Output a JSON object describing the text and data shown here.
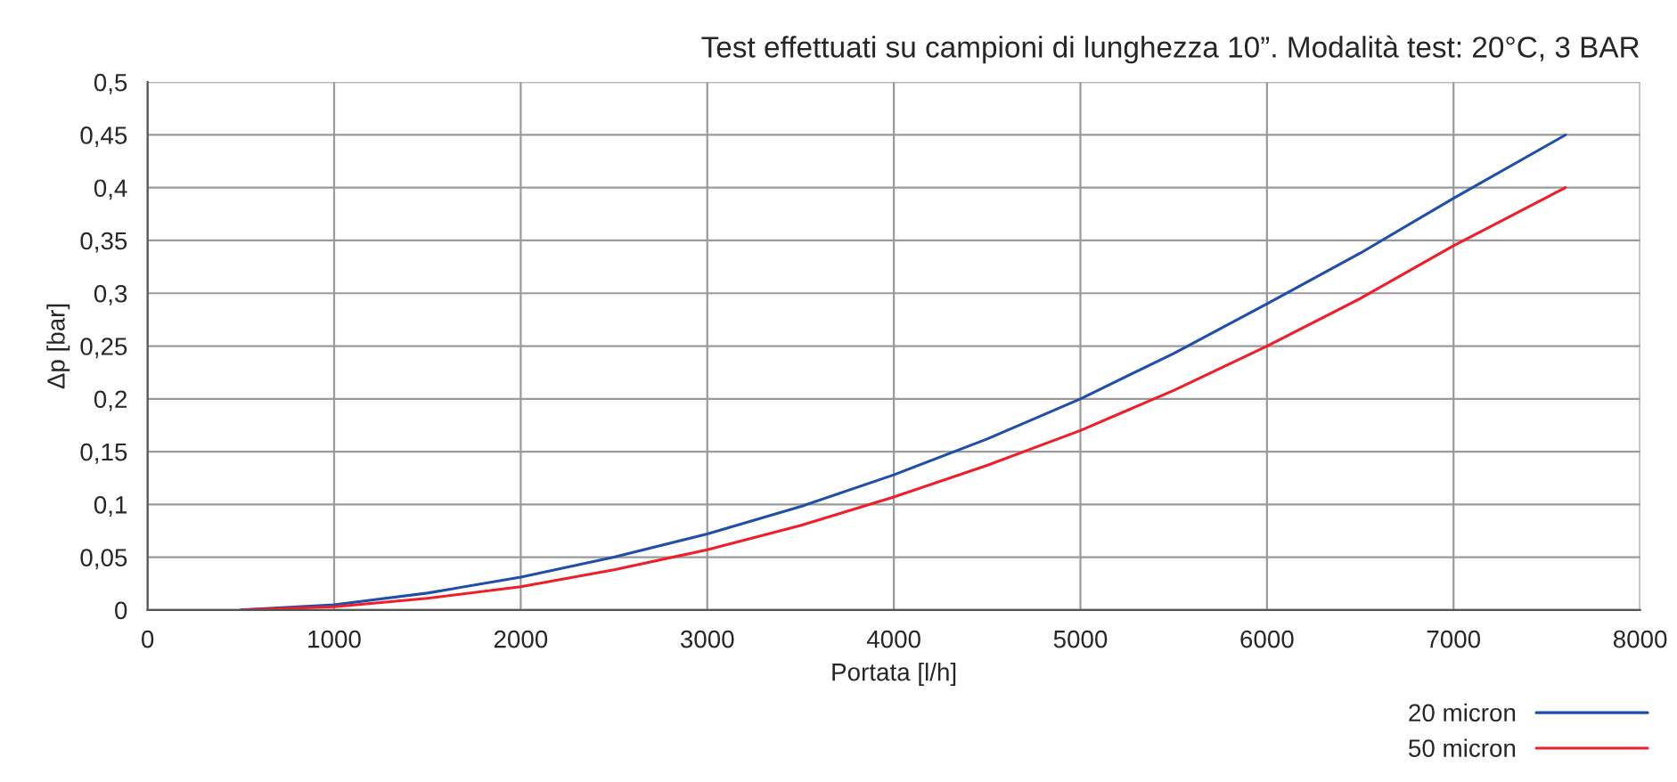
{
  "chart_data": {
    "type": "line",
    "title": "Test effettuati su campioni di lunghezza 10”. Modalità test: 20°C, 3 BAR",
    "xlabel": "Portata [l/h]",
    "ylabel": "Δp [bar]",
    "xlim": [
      0,
      8000
    ],
    "xticks": [
      0,
      1000,
      2000,
      3000,
      4000,
      5000,
      6000,
      7000,
      8000
    ],
    "ylim": [
      0,
      0.5
    ],
    "yticks": [
      {
        "value": 0,
        "label": "0"
      },
      {
        "value": 0.05,
        "label": "0,05"
      },
      {
        "value": 0.1,
        "label": "0,1"
      },
      {
        "value": 0.15,
        "label": "0,15"
      },
      {
        "value": 0.2,
        "label": "0,2"
      },
      {
        "value": 0.25,
        "label": "0,25"
      },
      {
        "value": 0.3,
        "label": "0,3"
      },
      {
        "value": 0.35,
        "label": "0,35"
      },
      {
        "value": 0.4,
        "label": "0,4"
      },
      {
        "value": 0.45,
        "label": "0,45"
      },
      {
        "value": 0.5,
        "label": "0,5"
      }
    ],
    "grid": true,
    "legend": "bottom right",
    "x": [
      500,
      1000,
      1500,
      2000,
      2500,
      3000,
      3500,
      4000,
      4500,
      5000,
      5500,
      6000,
      6500,
      7000,
      7600
    ],
    "series": [
      {
        "name": "20 micron",
        "color": "#1f4fa8",
        "values": [
          0,
          0.005,
          0.016,
          0.031,
          0.05,
          0.072,
          0.098,
          0.128,
          0.162,
          0.2,
          0.243,
          0.29,
          0.338,
          0.39,
          0.45
        ]
      },
      {
        "name": "50 micron",
        "color": "#f01e28",
        "values": [
          0,
          0.003,
          0.011,
          0.022,
          0.038,
          0.057,
          0.08,
          0.107,
          0.137,
          0.17,
          0.208,
          0.25,
          0.295,
          0.345,
          0.4
        ]
      }
    ]
  }
}
